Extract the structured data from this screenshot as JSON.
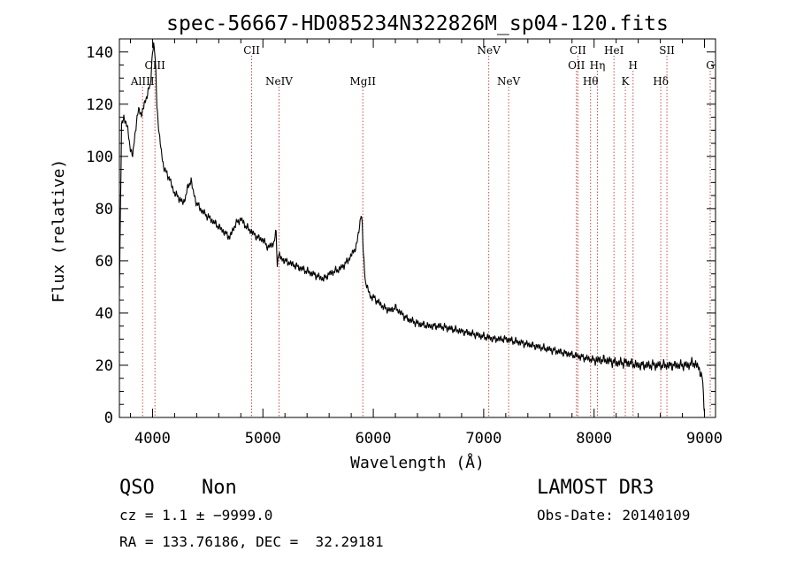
{
  "chart_data": {
    "type": "line",
    "title": "spec-56667-HD085234N322826M_sp04-120.fits",
    "xlabel": "Wavelength (Å)",
    "ylabel": "Flux (relative)",
    "xlim": [
      3700,
      9100
    ],
    "ylim": [
      0,
      145
    ],
    "xticks": [
      4000,
      5000,
      6000,
      7000,
      8000,
      9000
    ],
    "yticks": [
      0,
      20,
      40,
      60,
      80,
      100,
      120,
      140
    ],
    "grid": false,
    "line_color": "#000000",
    "marker_color": "#c0504d",
    "series": [
      {
        "x": [
          3700,
          3720,
          3740,
          3760,
          3780,
          3800,
          3820,
          3840,
          3860,
          3880,
          3900,
          3920,
          3940,
          3960,
          3980,
          4000,
          4010,
          4020,
          4030,
          4040,
          4060,
          4080,
          4100,
          4120,
          4150,
          4180,
          4200,
          4240,
          4280,
          4320,
          4350,
          4370,
          4400,
          4450,
          4500,
          4550,
          4600,
          4650,
          4700,
          4750,
          4800,
          4850,
          4900,
          4950,
          5000,
          5050,
          5100,
          5120,
          5130,
          5140,
          5160,
          5200,
          5250,
          5300,
          5350,
          5400,
          5450,
          5500,
          5550,
          5600,
          5650,
          5700,
          5750,
          5800,
          5850,
          5870,
          5890,
          5900,
          5910,
          5930,
          5950,
          5980,
          6000,
          6050,
          6100,
          6150,
          6200,
          6250,
          6300,
          6350,
          6400,
          6500,
          6600,
          6700,
          6800,
          6900,
          7000,
          7100,
          7200,
          7300,
          7400,
          7500,
          7600,
          7700,
          7800,
          7900,
          8000,
          8100,
          8200,
          8300,
          8400,
          8500,
          8600,
          8700,
          8800,
          8850,
          8900,
          8950,
          8980,
          9000
        ],
        "y": [
          48,
          112,
          115,
          113,
          109,
          103,
          100,
          108,
          115,
          118,
          116,
          119,
          122,
          125,
          127,
          140,
          143,
          140,
          132,
          120,
          108,
          102,
          96,
          94,
          92,
          88,
          86,
          84,
          82,
          88,
          91,
          86,
          82,
          79,
          77,
          75,
          73,
          71,
          69,
          74,
          76,
          73,
          71,
          69,
          68,
          65,
          67,
          71,
          58,
          63,
          61,
          60,
          59,
          58,
          57,
          56,
          55,
          54,
          53,
          55,
          56,
          57,
          59,
          62,
          66,
          72,
          78,
          74,
          62,
          52,
          49,
          46,
          46,
          44,
          42,
          41,
          42,
          40,
          38,
          37,
          36,
          35,
          35,
          34,
          33,
          32,
          31,
          30,
          30,
          29,
          28,
          27,
          26,
          25,
          24,
          23,
          22,
          22,
          21,
          21,
          20,
          20,
          20,
          20,
          20,
          20,
          21,
          19,
          15,
          2
        ]
      }
    ],
    "lines": [
      {
        "label": "AlIII",
        "x": 3910,
        "row": 2
      },
      {
        "label": "CIII",
        "x": 4022,
        "row": 1
      },
      {
        "label": "CII",
        "x": 4898,
        "row": 0
      },
      {
        "label": "NeIV",
        "x": 5146,
        "row": 2
      },
      {
        "label": "MgII",
        "x": 5905,
        "row": 2
      },
      {
        "label": "NeV",
        "x": 7046,
        "row": 0
      },
      {
        "label": "NeV",
        "x": 7226,
        "row": 2
      },
      {
        "label": "OII",
        "x": 7840,
        "row": 1
      },
      {
        "label": "CII",
        "x": 7853,
        "row": 0
      },
      {
        "label": "Hθ",
        "x": 7968,
        "row": 2
      },
      {
        "label": "Hη",
        "x": 8030,
        "row": 1
      },
      {
        "label": "HeI",
        "x": 8180,
        "row": 0
      },
      {
        "label": "K",
        "x": 8283,
        "row": 2
      },
      {
        "label": "H",
        "x": 8353,
        "row": 1
      },
      {
        "label": "Hδ",
        "x": 8604,
        "row": 2
      },
      {
        "label": "SII",
        "x": 8660,
        "row": 0
      },
      {
        "label": "G",
        "x": 9052,
        "row": 1
      }
    ]
  },
  "info": {
    "class": "QSO",
    "subclass": "Non",
    "cz": "cz = 1.1 ± −9999.0",
    "radec": "RA = 133.76186, DEC =  32.29181",
    "survey": "LAMOST DR3",
    "obs_date": "Obs-Date: 20140109"
  }
}
